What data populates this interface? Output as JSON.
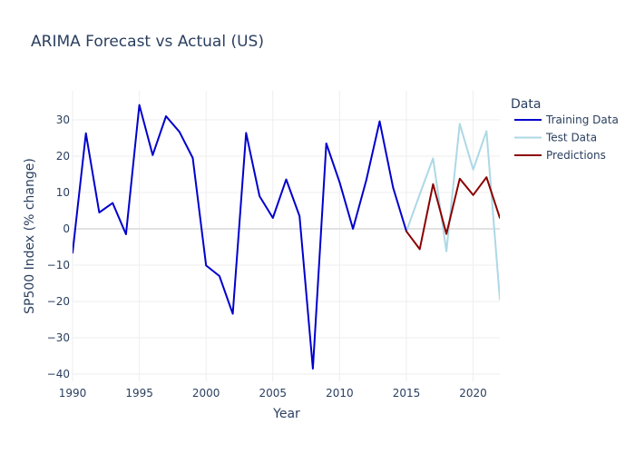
{
  "chart_data": {
    "type": "line",
    "title": "ARIMA Forecast vs Actual (US)",
    "xlabel": "Year",
    "ylabel": "SP500 Index (% change)",
    "xlim": [
      1990,
      2022
    ],
    "ylim": [
      -42,
      38
    ],
    "x_ticks": [
      1990,
      1995,
      2000,
      2005,
      2010,
      2015,
      2020
    ],
    "y_ticks": [
      -40,
      -30,
      -20,
      -10,
      0,
      10,
      20,
      30
    ],
    "grid": true,
    "legend": {
      "title": "Data",
      "position": "right"
    },
    "series": [
      {
        "name": "Training Data",
        "color": "#0000cd",
        "x": [
          1990,
          1991,
          1992,
          1993,
          1994,
          1995,
          1996,
          1997,
          1998,
          1999,
          2000,
          2001,
          2002,
          2003,
          2004,
          2005,
          2006,
          2007,
          2008,
          2009,
          2010,
          2011,
          2012,
          2013,
          2014,
          2015
        ],
        "y": [
          -6.6,
          26.3,
          4.5,
          7.1,
          -1.5,
          34.1,
          20.3,
          31.0,
          26.7,
          19.5,
          -10.1,
          -13.0,
          -23.4,
          26.4,
          9.0,
          3.0,
          13.6,
          3.5,
          -38.5,
          23.5,
          12.8,
          0.0,
          13.4,
          29.6,
          11.4,
          -0.7
        ]
      },
      {
        "name": "Test Data",
        "color": "#add8e6",
        "x": [
          2015,
          2016,
          2017,
          2018,
          2019,
          2020,
          2021,
          2022
        ],
        "y": [
          -0.7,
          9.5,
          19.4,
          -6.2,
          28.9,
          16.3,
          26.9,
          -19.4
        ]
      },
      {
        "name": "Predictions",
        "color": "#8b0000",
        "x": [
          2015,
          2016,
          2017,
          2018,
          2019,
          2020,
          2021,
          2022
        ],
        "y": [
          -0.7,
          -5.6,
          12.3,
          -1.4,
          13.8,
          9.3,
          14.2,
          3.0
        ]
      }
    ]
  }
}
